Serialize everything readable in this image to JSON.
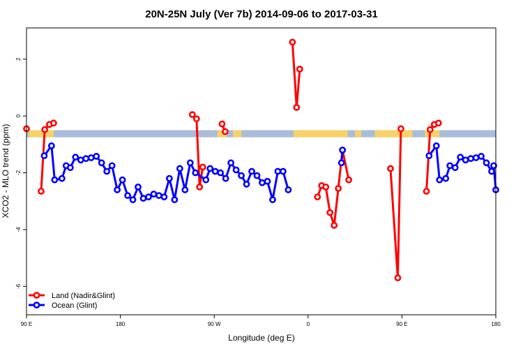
{
  "chart_data": {
    "type": "line",
    "title": "20N-25N July (Ver 7b)   2014-09-06 to 2017-03-31",
    "xlabel": "Longitude (deg E)",
    "ylabel": "XCO2 - MLO trend (ppm)",
    "xlim": [
      90,
      540
    ],
    "ylim": [
      -7,
      3.1
    ],
    "x_ticks": [
      {
        "value": 90,
        "label": "90 E"
      },
      {
        "value": 180,
        "label": "180"
      },
      {
        "value": 270,
        "label": "90 W"
      },
      {
        "value": 360,
        "label": "0"
      },
      {
        "value": 450,
        "label": "90 E"
      },
      {
        "value": 540,
        "label": "180"
      }
    ],
    "y_ticks": [
      {
        "value": 2,
        "label": "2"
      },
      {
        "value": 0,
        "label": "0"
      },
      {
        "value": -2,
        "label": "-2"
      },
      {
        "value": -4,
        "label": "-4"
      },
      {
        "value": -6,
        "label": "-6"
      }
    ],
    "band": {
      "y_top": -0.5,
      "y_bottom": -0.75,
      "ocean_color": "#a9bcd8",
      "land_color": "#f7d26a"
    },
    "land_spans": [
      [
        92,
        116
      ],
      [
        273,
        282
      ],
      [
        288,
        296
      ],
      [
        346,
        398
      ],
      [
        405,
        411
      ],
      [
        424,
        460
      ],
      [
        472,
        486
      ]
    ],
    "series": [
      {
        "name": "Land (Nadir&Glint)",
        "color": "#ff0000",
        "segments": [
          [
            [
              90,
              -0.45
            ]
          ],
          [
            [
              104,
              -2.65
            ],
            [
              107.5,
              -0.48
            ],
            [
              112,
              -0.3
            ],
            [
              116,
              -0.25
            ]
          ],
          [
            [
              249,
              0.05
            ],
            [
              253,
              -0.1
            ],
            [
              256,
              -2.5
            ],
            [
              259,
              -1.8
            ]
          ],
          [
            [
              277.5,
              -0.28
            ],
            [
              280.5,
              -0.55
            ]
          ],
          [
            [
              345,
              2.6
            ],
            [
              349,
              0.3
            ],
            [
              352,
              1.65
            ]
          ],
          [
            [
              369,
              -2.85
            ],
            [
              373,
              -2.45
            ],
            [
              377,
              -2.5
            ],
            [
              381,
              -3.4
            ],
            [
              385,
              -3.85
            ],
            [
              389,
              -2.55
            ],
            [
              393,
              -1.2
            ],
            [
              399,
              -2.25
            ]
          ],
          [
            [
              439,
              -1.85
            ],
            [
              446,
              -5.7
            ],
            [
              449,
              -0.45
            ]
          ],
          [
            [
              473.5,
              -2.65
            ],
            [
              477,
              -0.48
            ],
            [
              481,
              -0.3
            ],
            [
              485,
              -0.25
            ]
          ]
        ]
      },
      {
        "name": "Ocean (Glint)",
        "color": "#0000ff",
        "segments": [
          [
            [
              107,
              -1.4
            ],
            [
              114,
              -1.05
            ],
            [
              117,
              -2.25
            ],
            [
              124,
              -2.2
            ],
            [
              128,
              -1.75
            ],
            [
              132,
              -1.82
            ],
            [
              137,
              -1.45
            ],
            [
              142,
              -1.55
            ],
            [
              147,
              -1.5
            ],
            [
              152,
              -1.47
            ],
            [
              157,
              -1.42
            ],
            [
              162,
              -1.65
            ],
            [
              167,
              -1.95
            ],
            [
              172,
              -1.75
            ],
            [
              177,
              -2.6
            ],
            [
              182,
              -2.25
            ],
            [
              187,
              -2.8
            ],
            [
              192,
              -2.95
            ],
            [
              197,
              -2.5
            ],
            [
              202,
              -2.9
            ],
            [
              207,
              -2.85
            ],
            [
              212,
              -2.75
            ],
            [
              217,
              -2.8
            ],
            [
              222,
              -2.85
            ],
            [
              227,
              -2.2
            ],
            [
              232,
              -2.95
            ],
            [
              237,
              -1.85
            ],
            [
              242,
              -2.6
            ],
            [
              247,
              -1.65
            ],
            [
              252,
              -2.0
            ],
            [
              262,
              -2.25
            ],
            [
              266,
              -1.85
            ],
            [
              271,
              -1.95
            ],
            [
              276,
              -2.0
            ],
            [
              281,
              -2.2
            ],
            [
              286,
              -1.65
            ],
            [
              291,
              -1.9
            ],
            [
              296,
              -2.1
            ],
            [
              301,
              -2.4
            ],
            [
              306,
              -1.95
            ],
            [
              311,
              -2.1
            ],
            [
              316,
              -2.35
            ],
            [
              321,
              -2.3
            ],
            [
              326,
              -2.95
            ],
            [
              331,
              -1.95
            ],
            [
              336,
              -1.95
            ],
            [
              341,
              -2.6
            ]
          ],
          [
            [
              392,
              -1.65
            ],
            [
              393,
              -1.2
            ]
          ],
          [
            [
              476,
              -1.4
            ],
            [
              483,
              -1.05
            ],
            [
              486,
              -2.25
            ],
            [
              492,
              -2.2
            ],
            [
              496,
              -1.75
            ],
            [
              501,
              -1.82
            ],
            [
              506,
              -1.45
            ],
            [
              511,
              -1.55
            ],
            [
              516,
              -1.5
            ],
            [
              521,
              -1.47
            ],
            [
              526,
              -1.42
            ],
            [
              531,
              -1.65
            ],
            [
              536,
              -1.95
            ],
            [
              538,
              -1.75
            ],
            [
              540,
              -2.6
            ]
          ]
        ]
      }
    ],
    "legend": {
      "position": "bottom-left"
    }
  }
}
